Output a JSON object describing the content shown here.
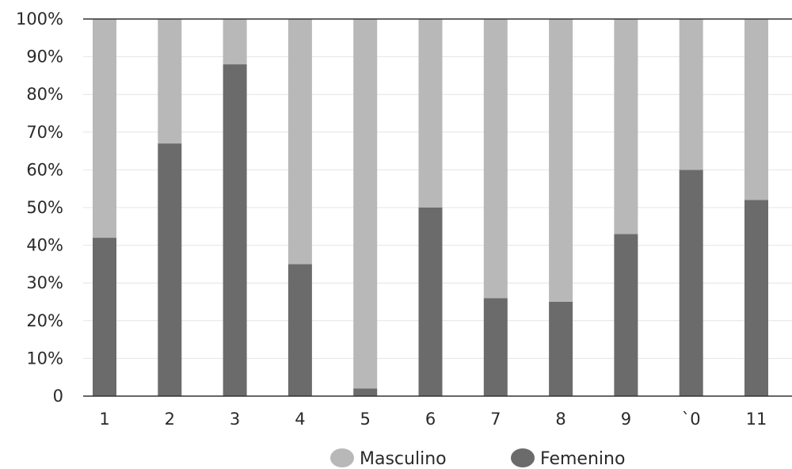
{
  "chart_data": {
    "type": "bar",
    "stacked": true,
    "percent": true,
    "categories": [
      "1",
      "2",
      "3",
      "4",
      "5",
      "6",
      "7",
      "8",
      "9",
      "`0",
      "11"
    ],
    "series": [
      {
        "name": "Femenino",
        "color": "#6b6b6b",
        "values": [
          42,
          67,
          88,
          35,
          2,
          50,
          26,
          25,
          43,
          60,
          52
        ]
      },
      {
        "name": "Masculino",
        "color": "#b8b8b8",
        "values": [
          58,
          33,
          12,
          65,
          98,
          50,
          74,
          75,
          57,
          40,
          48
        ]
      }
    ],
    "yticks": [
      "0",
      "10%",
      "20%",
      "30%",
      "40%",
      "50%",
      "60%",
      "70%",
      "80%",
      "90%",
      "100%"
    ],
    "ylim": [
      0,
      100
    ],
    "legend": {
      "position": "bottom",
      "items": [
        "Masculino",
        "Femenino"
      ]
    }
  }
}
